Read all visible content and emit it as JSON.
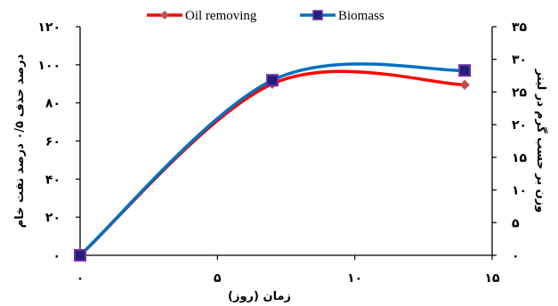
{
  "chart_data": {
    "type": "line",
    "title": "",
    "xlabel": "زمان (روز)",
    "ylabel_left": "درصد حذف ۰/۵ درصد نفت خام",
    "ylabel_right": "وزن بر حسب گرم در لیتر",
    "xlim": [
      0,
      15
    ],
    "ylim_left": [
      0,
      120
    ],
    "ylim_right": [
      0,
      35
    ],
    "x_ticks": [
      0,
      5,
      10,
      15
    ],
    "x_tick_labels": [
      "۰",
      "۵",
      "۱۰",
      "۱۵"
    ],
    "y_left_ticks": [
      0,
      20,
      40,
      60,
      80,
      100,
      120
    ],
    "y_left_tick_labels": [
      "۰",
      "۲۰",
      "۴۰",
      "۶۰",
      "۸۰",
      "۱۰۰",
      "۱۲۰"
    ],
    "y_right_ticks": [
      0,
      5,
      10,
      15,
      20,
      25,
      30,
      35
    ],
    "y_right_tick_labels": [
      "۰",
      "۵",
      "۱۰",
      "۱۵",
      "۲۰",
      "۲۵",
      "۳۰",
      "۳۵"
    ],
    "legend_position": "top-center",
    "grid": false,
    "series": [
      {
        "name": "Oil removing",
        "axis": "left",
        "color": "#ff0000",
        "marker": "diamond",
        "marker_color": "#c0504d",
        "x": [
          0,
          7,
          14
        ],
        "y": [
          0,
          90,
          89.5
        ]
      },
      {
        "name": "Biomass",
        "axis": "right",
        "color": "#0070c0",
        "marker": "square",
        "marker_color": "#1f1f7a",
        "marker_border": "#7030a0",
        "x": [
          0,
          7,
          14
        ],
        "y": [
          0,
          26.8,
          28.3
        ]
      }
    ]
  }
}
